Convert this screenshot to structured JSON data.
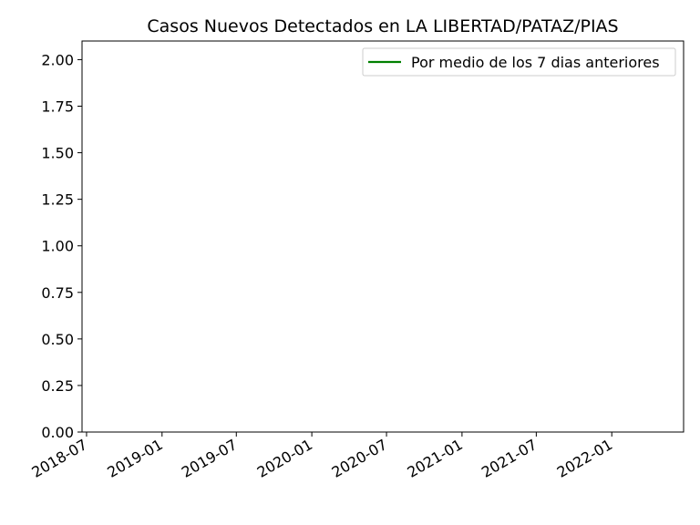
{
  "chart_data": {
    "type": "line",
    "title": "Casos Nuevos Detectados en LA LIBERTAD/PATAZ/PIAS",
    "xlabel": "",
    "ylabel": "",
    "x_ticks": [
      "2018-07",
      "2019-01",
      "2019-07",
      "2020-01",
      "2020-07",
      "2021-01",
      "2021-07",
      "2022-01"
    ],
    "y_ticks": [
      "0.00",
      "0.25",
      "0.50",
      "0.75",
      "1.00",
      "1.25",
      "1.50",
      "1.75",
      "2.00"
    ],
    "ylim": [
      0,
      2.1
    ],
    "xlim": [
      "2018-06-20",
      "2022-06-25"
    ],
    "grid": false,
    "legend_position": "top-right",
    "series": [
      {
        "name": "Por medio de los 7 dias anteriores",
        "color": "#008000",
        "x": [],
        "y": []
      }
    ]
  }
}
